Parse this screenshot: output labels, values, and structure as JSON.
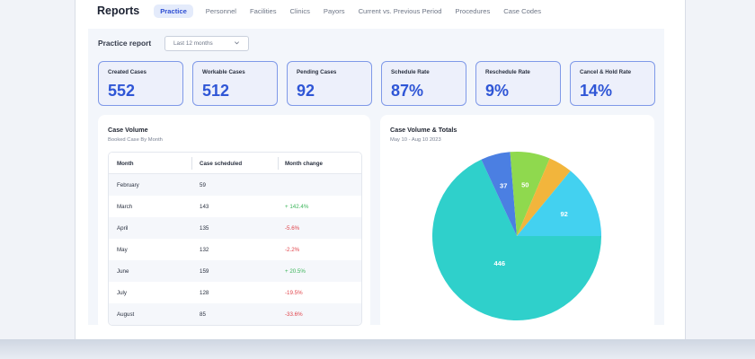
{
  "header": {
    "title": "Reports",
    "tabs": [
      {
        "label": "Practice",
        "active": true
      },
      {
        "label": "Personnel",
        "active": false
      },
      {
        "label": "Facilities",
        "active": false
      },
      {
        "label": "Clinics",
        "active": false
      },
      {
        "label": "Payors",
        "active": false
      },
      {
        "label": "Current vs. Previous Period",
        "active": false
      },
      {
        "label": "Procedures",
        "active": false
      },
      {
        "label": "Case Codes",
        "active": false
      }
    ]
  },
  "report": {
    "title": "Practice report",
    "period": "Last 12 months"
  },
  "stats": [
    {
      "label": "Created Cases",
      "value": "552"
    },
    {
      "label": "Workable Cases",
      "value": "512"
    },
    {
      "label": "Pending Cases",
      "value": "92"
    },
    {
      "label": "Schedule Rate",
      "value": "87%"
    },
    {
      "label": "Reschedule Rate",
      "value": "9%"
    },
    {
      "label": "Cancel & Hold Rate",
      "value": "14%"
    }
  ],
  "case_volume": {
    "title": "Case Volume",
    "subtitle": "Booked Case By Month",
    "columns": [
      "Month",
      "Case scheduled",
      "Month change"
    ],
    "rows": [
      {
        "month": "February",
        "scheduled": "59",
        "change": "",
        "trend": "none"
      },
      {
        "month": "March",
        "scheduled": "143",
        "change": "+ 142.4%",
        "trend": "up"
      },
      {
        "month": "April",
        "scheduled": "135",
        "change": "-5.6%",
        "trend": "down"
      },
      {
        "month": "May",
        "scheduled": "132",
        "change": "-2.2%",
        "trend": "down"
      },
      {
        "month": "June",
        "scheduled": "159",
        "change": "+ 20.5%",
        "trend": "up"
      },
      {
        "month": "July",
        "scheduled": "128",
        "change": "-19.5%",
        "trend": "down"
      },
      {
        "month": "August",
        "scheduled": "85",
        "change": "-33.6%",
        "trend": "down"
      }
    ]
  },
  "totals": {
    "title": "Case Volume & Totals",
    "subtitle": "May 10 - Aug 10 2023"
  },
  "chart_data": {
    "type": "pie",
    "slices": [
      {
        "value": 446,
        "label": "446",
        "color": "#2fd0cb"
      },
      {
        "value": 37,
        "label": "37",
        "color": "#4b7fe2"
      },
      {
        "value": 50,
        "label": "50",
        "color": "#8fd94e"
      },
      {
        "value": 30,
        "label": "",
        "color": "#f2b53c"
      },
      {
        "value": 92,
        "label": "92",
        "color": "#43d1f0"
      }
    ]
  },
  "colors": {
    "accent": "#2f56d6",
    "positive": "#3cb55a",
    "negative": "#e0434a"
  }
}
